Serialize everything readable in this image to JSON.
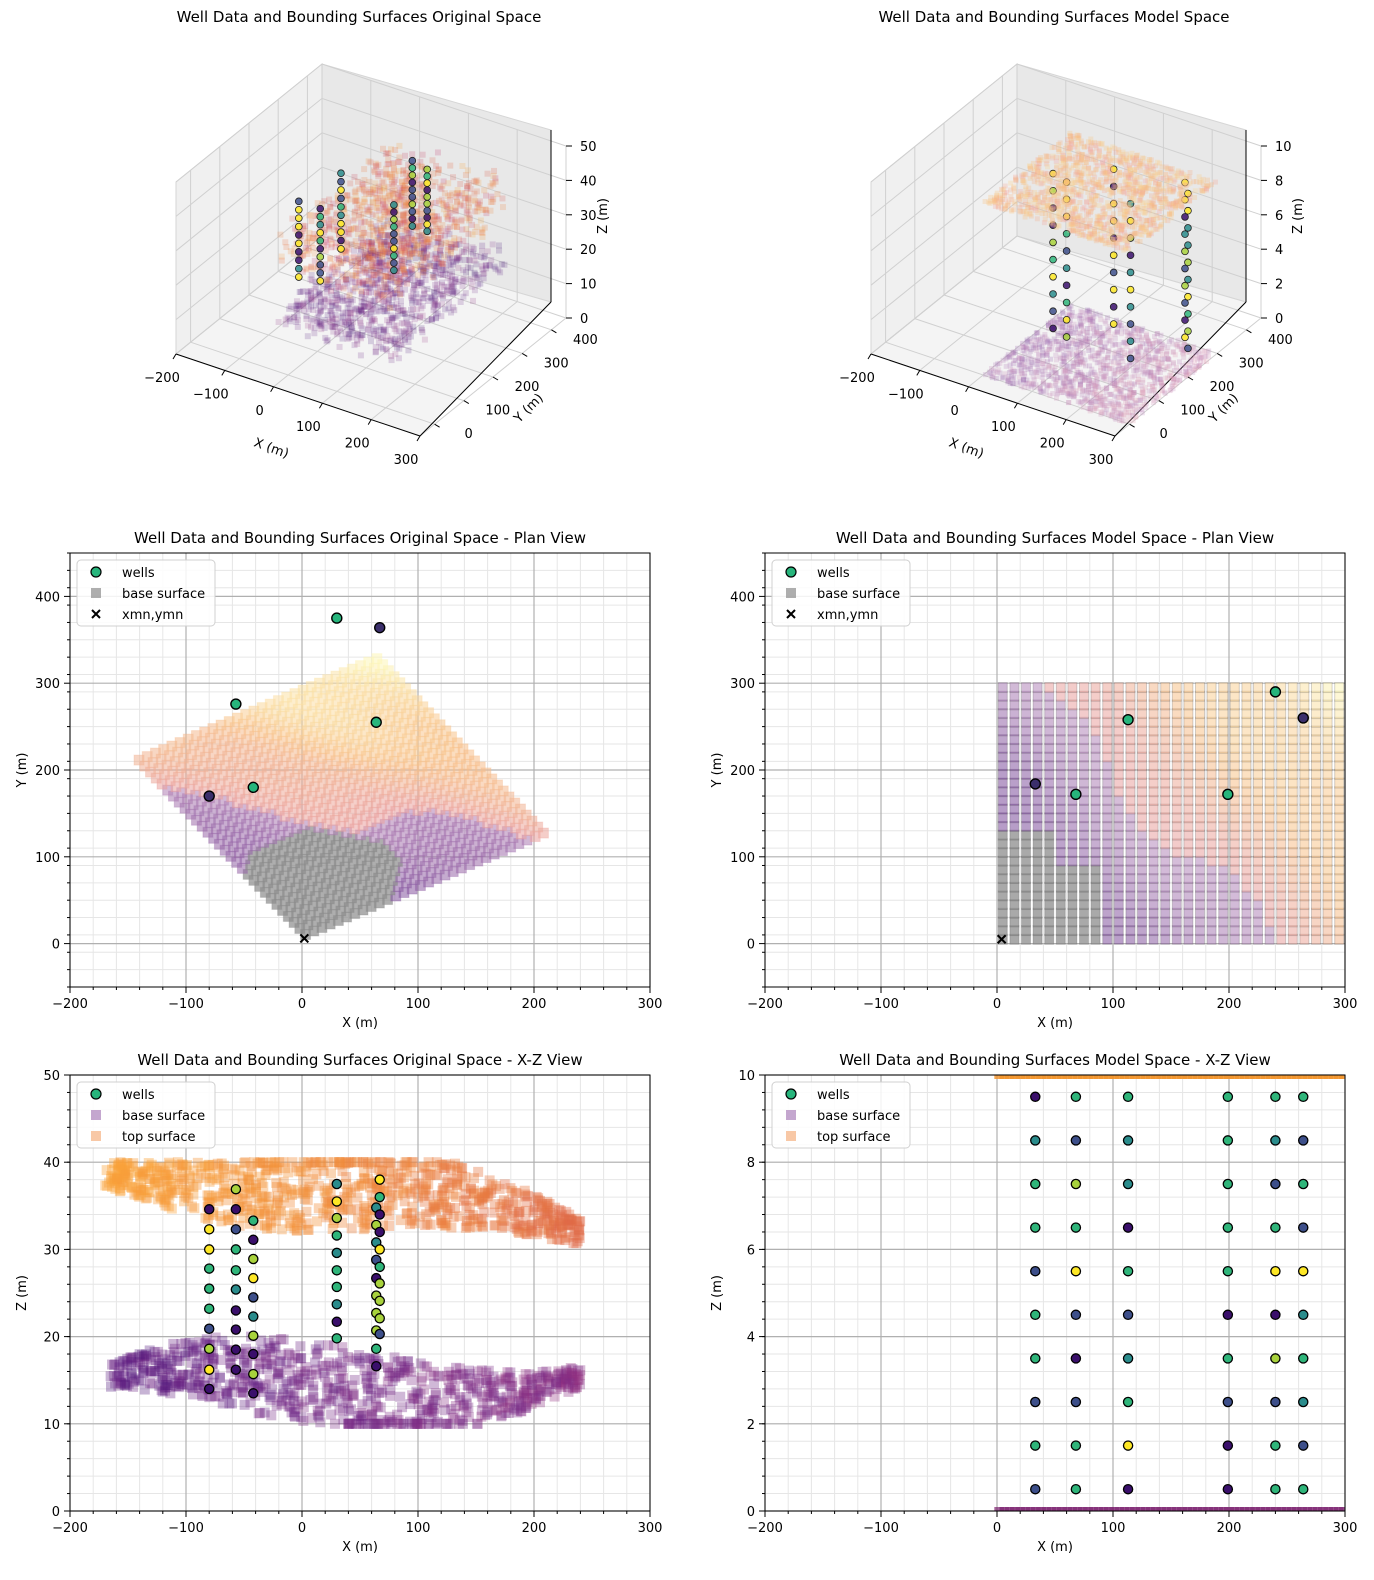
{
  "chart_data": [
    {
      "id": "p3d_orig",
      "type": "scatter3d",
      "title": "Well Data and Bounding Surfaces Original Space",
      "xlabel": "X (m)",
      "ylabel": "Y (m)",
      "zlabel": "Z (m)",
      "xlim": [
        -200,
        300
      ],
      "ylim": [
        -50,
        450
      ],
      "zlim": [
        0,
        50
      ],
      "xticks": [
        -200,
        -100,
        0,
        100,
        200,
        300
      ],
      "yticks": [
        0,
        100,
        200,
        300,
        400
      ],
      "zticks": [
        0,
        10,
        20,
        30,
        40,
        50
      ],
      "wells": [
        {
          "x": -80,
          "y": 170,
          "z_top": 35,
          "z_bot": 13
        },
        {
          "x": -57,
          "y": 276,
          "z_top": 37,
          "z_bot": 15
        },
        {
          "x": -42,
          "y": 180,
          "z_top": 34,
          "z_bot": 13
        },
        {
          "x": 30,
          "y": 375,
          "z_top": 38,
          "z_bot": 19
        },
        {
          "x": 64,
          "y": 255,
          "z_top": 35,
          "z_bot": 16
        },
        {
          "x": 67,
          "y": 364,
          "z_top": 38,
          "z_bot": 20
        }
      ]
    },
    {
      "id": "p3d_model",
      "type": "scatter3d",
      "title": "Well Data and Bounding Surfaces Model Space",
      "xlabel": "X (m)",
      "ylabel": "Y (m)",
      "zlabel": "Z (m)",
      "xlim": [
        -200,
        300
      ],
      "ylim": [
        -50,
        450
      ],
      "zlim": [
        0,
        10
      ],
      "xticks": [
        -200,
        -100,
        0,
        100,
        200,
        300
      ],
      "yticks": [
        0,
        100,
        200,
        300,
        400
      ],
      "zticks": [
        0,
        2,
        4,
        6,
        8,
        10
      ]
    },
    {
      "id": "plan_orig",
      "type": "scatter",
      "title": "Well Data and Bounding Surfaces Original Space - Plan View",
      "xlabel": "X (m)",
      "ylabel": "Y (m)",
      "xlim": [
        -200,
        300
      ],
      "ylim": [
        -50,
        450
      ],
      "xticks": [
        -200,
        -100,
        0,
        100,
        200,
        300
      ],
      "yticks": [
        0,
        100,
        200,
        300,
        400
      ],
      "legend": {
        "position": "upper-left",
        "entries": [
          "wells",
          "base surface",
          "xmn,ymn"
        ]
      },
      "rotated_grid": {
        "origin": [
          2,
          5
        ],
        "angle_deg": 45,
        "size": 300,
        "n": 30
      },
      "wells": [
        {
          "x": -80,
          "y": 170,
          "color": "#3b2f6b"
        },
        {
          "x": -57,
          "y": 276,
          "color": "#27b57c"
        },
        {
          "x": -42,
          "y": 180,
          "color": "#27b57c"
        },
        {
          "x": 30,
          "y": 375,
          "color": "#27b57c"
        },
        {
          "x": 64,
          "y": 255,
          "color": "#27b57c"
        },
        {
          "x": 67,
          "y": 364,
          "color": "#3b2f6b"
        }
      ],
      "origin_marker": {
        "x": 2,
        "y": 6
      }
    },
    {
      "id": "plan_model",
      "type": "scatter",
      "title": "Well Data and Bounding Surfaces Model Space - Plan View",
      "xlabel": "X (m)",
      "ylabel": "Y (m)",
      "xlim": [
        -200,
        300
      ],
      "ylim": [
        -50,
        450
      ],
      "xticks": [
        -200,
        -100,
        0,
        100,
        200,
        300
      ],
      "yticks": [
        0,
        100,
        200,
        300,
        400
      ],
      "legend": {
        "position": "upper-left",
        "entries": [
          "wells",
          "base surface",
          "xmn,ymn"
        ]
      },
      "grid_extent": {
        "x": [
          0,
          300
        ],
        "y": [
          0,
          300
        ],
        "n": 30
      },
      "wells": [
        {
          "x": 33,
          "y": 184,
          "color": "#3b2f6b"
        },
        {
          "x": 68,
          "y": 172,
          "color": "#27b57c"
        },
        {
          "x": 113,
          "y": 258,
          "color": "#27b57c"
        },
        {
          "x": 199,
          "y": 172,
          "color": "#27b57c"
        },
        {
          "x": 240,
          "y": 290,
          "color": "#27b57c"
        },
        {
          "x": 264,
          "y": 260,
          "color": "#3b2f6b"
        }
      ],
      "origin_marker": {
        "x": 4,
        "y": 5
      }
    },
    {
      "id": "xz_orig",
      "type": "scatter",
      "title": "Well Data and Bounding Surfaces Original Space - X-Z View",
      "xlabel": "X (m)",
      "ylabel": "Z (m)",
      "xlim": [
        -200,
        300
      ],
      "ylim": [
        0,
        50
      ],
      "xticks": [
        -200,
        -100,
        0,
        100,
        200,
        300
      ],
      "yticks": [
        0,
        10,
        20,
        30,
        40,
        50
      ],
      "legend": {
        "position": "upper-left",
        "entries": [
          "wells",
          "base surface",
          "top surface"
        ]
      },
      "surfaces": {
        "x_range": [
          -165,
          240
        ],
        "base_z": [
          10,
          20
        ],
        "top_z": [
          30,
          40
        ]
      },
      "wells": [
        {
          "x": -80,
          "z": [
            14.0,
            16.2,
            18.6,
            20.9,
            23.2,
            25.5,
            27.8,
            30.0,
            32.3,
            34.6
          ]
        },
        {
          "x": -57,
          "z": [
            16.2,
            18.5,
            20.8,
            23.0,
            25.4,
            27.6,
            30.0,
            32.3,
            34.6,
            36.9
          ]
        },
        {
          "x": -42,
          "z": [
            13.5,
            15.7,
            18.0,
            20.1,
            22.3,
            24.5,
            26.7,
            28.9,
            31.1,
            33.3
          ]
        },
        {
          "x": 30,
          "z": [
            19.8,
            21.7,
            23.7,
            25.7,
            27.6,
            29.6,
            31.6,
            33.6,
            35.5,
            37.5
          ]
        },
        {
          "x": 64,
          "z": [
            16.6,
            18.6,
            20.7,
            22.7,
            24.7,
            26.7,
            28.8,
            30.8,
            32.8,
            34.8
          ]
        },
        {
          "x": 67,
          "z": [
            20.3,
            22.1,
            24.1,
            26.1,
            28.0,
            30.0,
            32.0,
            34.0,
            36.0,
            38.0
          ]
        }
      ]
    },
    {
      "id": "xz_model",
      "type": "scatter",
      "title": "Well Data and Bounding Surfaces Model Space - X-Z View",
      "xlabel": "X (m)",
      "ylabel": "Z (m)",
      "xlim": [
        -200,
        300
      ],
      "ylim": [
        0,
        10
      ],
      "xticks": [
        -200,
        -100,
        0,
        100,
        200,
        300
      ],
      "yticks": [
        0,
        2,
        4,
        6,
        8,
        10
      ],
      "legend": {
        "position": "upper-left",
        "entries": [
          "wells",
          "base surface",
          "top surface"
        ]
      },
      "surfaces": {
        "x_range": [
          0,
          300
        ],
        "base_z": 0,
        "top_z": 10
      },
      "wells": [
        {
          "x": 33,
          "z": [
            0.5,
            1.5,
            2.5,
            3.5,
            4.5,
            5.5,
            6.5,
            7.5,
            8.5,
            9.5
          ],
          "codes": [
            1,
            2,
            1,
            2,
            2,
            1,
            2,
            2,
            3,
            0
          ]
        },
        {
          "x": 68,
          "z": [
            0.5,
            1.5,
            2.5,
            3.5,
            4.5,
            5.5,
            6.5,
            7.5,
            8.5,
            9.5
          ],
          "codes": [
            2,
            2,
            1,
            0,
            1,
            4,
            2,
            5,
            1,
            2
          ]
        },
        {
          "x": 113,
          "z": [
            0.5,
            1.5,
            2.5,
            3.5,
            4.5,
            5.5,
            6.5,
            7.5,
            8.5,
            9.5
          ],
          "codes": [
            0,
            4,
            2,
            3,
            1,
            2,
            0,
            3,
            3,
            2
          ]
        },
        {
          "x": 199,
          "z": [
            0.5,
            1.5,
            2.5,
            3.5,
            4.5,
            5.5,
            6.5,
            7.5,
            8.5,
            9.5
          ],
          "codes": [
            0,
            0,
            1,
            2,
            0,
            2,
            2,
            2,
            2,
            2
          ]
        },
        {
          "x": 240,
          "z": [
            0.5,
            1.5,
            2.5,
            3.5,
            4.5,
            5.5,
            6.5,
            7.5,
            8.5,
            9.5
          ],
          "codes": [
            2,
            2,
            1,
            5,
            0,
            4,
            2,
            1,
            3,
            2
          ]
        },
        {
          "x": 264,
          "z": [
            0.5,
            1.5,
            2.5,
            3.5,
            4.5,
            5.5,
            6.5,
            7.5,
            8.5,
            9.5
          ],
          "codes": [
            2,
            1,
            3,
            2,
            3,
            4,
            1,
            2,
            1,
            2
          ]
        }
      ]
    }
  ],
  "colors": {
    "well_palette": [
      "#3a0f6b",
      "#3d4f8a",
      "#2fb57a",
      "#2a8c8c",
      "#fde725",
      "#a8d23c"
    ],
    "base_surface": "#8a4fa0",
    "top_surface": "#f3a36a",
    "grey_surface": "#8c8c8c"
  }
}
